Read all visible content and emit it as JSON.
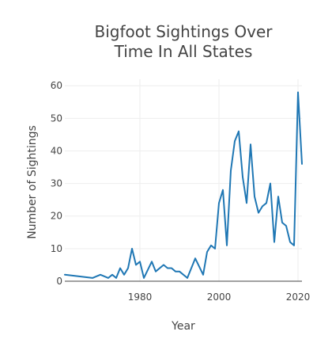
{
  "chart_data": {
    "type": "line",
    "title_lines": [
      "Bigfoot Sightings Over",
      "Time In All States"
    ],
    "xlabel": "Year",
    "ylabel": "Number of Sightings",
    "xlim": [
      1961,
      2021
    ],
    "ylim": [
      0,
      62
    ],
    "x_ticks": [
      1980,
      2000,
      2020
    ],
    "y_ticks": [
      0,
      10,
      20,
      30,
      40,
      50,
      60
    ],
    "grid": true,
    "legend": "none",
    "series": [
      {
        "color": "#1f77b4",
        "x": [
          1961,
          1968,
          1970,
          1972,
          1973,
          1974,
          1975,
          1976,
          1977,
          1978,
          1979,
          1980,
          1981,
          1983,
          1984,
          1986,
          1987,
          1988,
          1989,
          1990,
          1992,
          1994,
          1996,
          1997,
          1998,
          1999,
          2000,
          2001,
          2002,
          2003,
          2004,
          2005,
          2006,
          2007,
          2008,
          2009,
          2010,
          2011,
          2012,
          2013,
          2014,
          2015,
          2016,
          2017,
          2018,
          2019,
          2020,
          2021
        ],
        "y": [
          2,
          1,
          2,
          1,
          2,
          1,
          4,
          2,
          4,
          10,
          5,
          6,
          1,
          6,
          3,
          5,
          4,
          4,
          3,
          3,
          1,
          7,
          2,
          9,
          11,
          10,
          24,
          28,
          11,
          34,
          43,
          46,
          32,
          24,
          42,
          26,
          21,
          23,
          24,
          30,
          12,
          26,
          18,
          17,
          12,
          11,
          58,
          36
        ]
      }
    ]
  }
}
